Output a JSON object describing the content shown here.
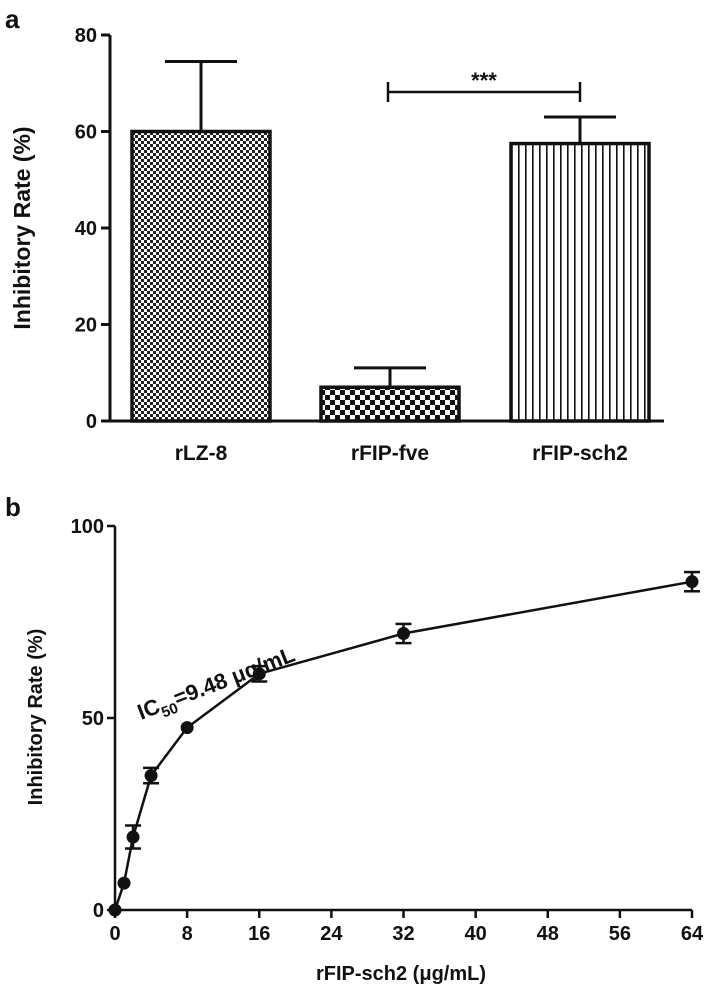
{
  "chart_data": [
    {
      "panel": "a",
      "type": "bar",
      "title": "",
      "xlabel": "",
      "ylabel": "Inhibitory Rate (%)",
      "ylim": [
        0,
        80
      ],
      "yticks": [
        0,
        20,
        40,
        60,
        80
      ],
      "categories": [
        "rLZ-8",
        "rFIP-fve",
        "rFIP-sch2"
      ],
      "values": [
        60,
        7,
        57.5
      ],
      "error_upper": [
        74.5,
        11,
        63
      ],
      "bar_patterns": [
        "checker-fine",
        "checker-coarse",
        "vertical-lines"
      ],
      "significance": {
        "from": "rFIP-fve",
        "to": "rFIP-sch2",
        "label": "***"
      },
      "grid": false,
      "legend": "none"
    },
    {
      "panel": "b",
      "type": "line",
      "title": "",
      "xlabel": "rFIP-sch2 (μg/mL)",
      "ylabel": "Inhibitory Rate (%)",
      "xlim": [
        0,
        64
      ],
      "ylim": [
        0,
        100
      ],
      "xticks": [
        0,
        8,
        16,
        24,
        32,
        40,
        48,
        56,
        64
      ],
      "yticks": [
        0,
        50,
        100
      ],
      "x": [
        0,
        1,
        2,
        4,
        8,
        16,
        32,
        64
      ],
      "y": [
        0,
        7,
        19,
        35,
        47.5,
        61.5,
        72,
        85.5
      ],
      "error": [
        0,
        0,
        3,
        2,
        0,
        2,
        2.5,
        2.5
      ],
      "annotation": {
        "prefix": "IC",
        "sub": "50",
        "suffix": "=9.48 μg/mL"
      },
      "marker": "circle",
      "grid": false,
      "legend": "none"
    }
  ],
  "colors": {
    "ink": "#111111",
    "background": "#ffffff"
  }
}
